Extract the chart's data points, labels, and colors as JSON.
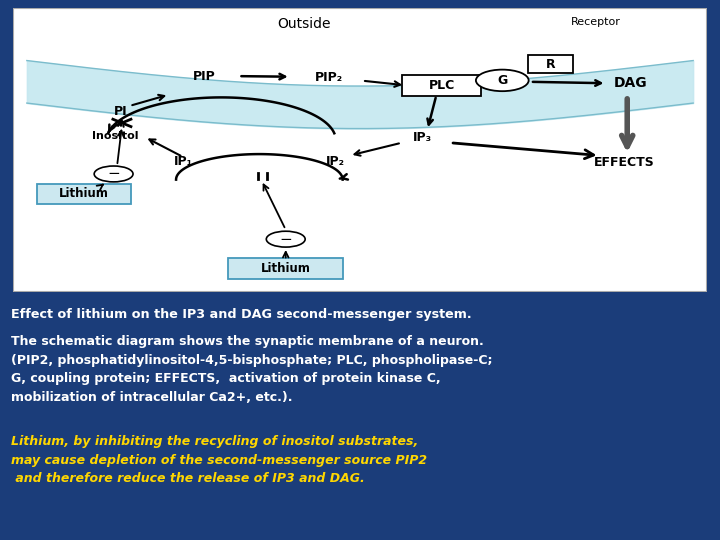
{
  "bg_color": "#1b3d7a",
  "diagram_bg": "#ffffff",
  "membrane_color": "#c5e8f0",
  "title_line1": "Effect of lithium on the IP3 and DAG second-messenger system.",
  "title_color": "#ffffff",
  "body_text": "The schematic diagram shows the synaptic membrane of a neuron.\n(PIP2, phosphatidylinositol-4,5-bisphosphate; PLC, phospholipase-C;\nG, coupling protein; EFFECTS,  activation of protein kinase C,\nmobilization of intracellular Ca2+, etc.).",
  "body_color": "#ffffff",
  "italic_text": "Lithium, by inhibiting the recycling of inositol substrates,\nmay cause depletion of the second-messenger source PIP2\n and therefore reduce the release of IP3 and DAG.",
  "italic_color": "#ffd700",
  "outside_label": "Outside",
  "receptor_label": "Receptor",
  "pip_label": "PIP",
  "pip2_label": "PIP₂",
  "plc_label": "PLC",
  "g_label": "G",
  "r_label": "R",
  "dag_label": "DAG",
  "pi_label": "PI",
  "inositol_label": "Inositol",
  "ip1_label": "IP₁",
  "ip2_label": "IP₂",
  "ip3_label": "IP₃",
  "effects_label": "EFFECTS",
  "lithium_label": "Lithium",
  "lithium_box_color": "#cce8f0",
  "lithium_box_edge": "#4499bb"
}
